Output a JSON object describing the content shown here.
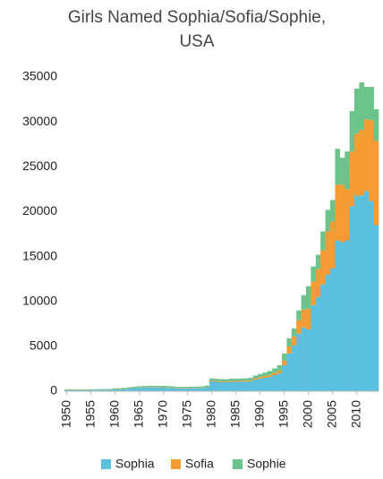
{
  "chart_data": {
    "type": "bar",
    "stacked": true,
    "title": "Girls Named Sophia/Sofia/Sophie, USA",
    "x": [
      1950,
      1951,
      1952,
      1953,
      1954,
      1955,
      1956,
      1957,
      1958,
      1959,
      1960,
      1961,
      1962,
      1963,
      1964,
      1965,
      1966,
      1967,
      1968,
      1969,
      1970,
      1971,
      1972,
      1973,
      1974,
      1975,
      1976,
      1977,
      1978,
      1979,
      1980,
      1981,
      1982,
      1983,
      1984,
      1985,
      1986,
      1987,
      1988,
      1989,
      1990,
      1991,
      1992,
      1993,
      1994,
      1995,
      1996,
      1997,
      1998,
      1999,
      2000,
      2001,
      2002,
      2003,
      2004,
      2005,
      2006,
      2007,
      2008,
      2009,
      2010,
      2011,
      2012,
      2013,
      2014
    ],
    "xlim": [
      1949.5,
      2014.5
    ],
    "xticks": [
      1950,
      1955,
      1960,
      1965,
      1970,
      1975,
      1980,
      1985,
      1990,
      1995,
      2000,
      2005,
      2010
    ],
    "ylim": [
      0,
      35000
    ],
    "yticks": [
      0,
      5000,
      10000,
      15000,
      20000,
      25000,
      30000,
      35000
    ],
    "grid": false,
    "legend": "bottom",
    "series": [
      {
        "name": "Sophia",
        "color": "#5bbfde",
        "values": [
          130,
          130,
          120,
          120,
          130,
          130,
          140,
          150,
          160,
          170,
          200,
          220,
          250,
          300,
          350,
          380,
          400,
          420,
          430,
          420,
          400,
          380,
          350,
          330,
          320,
          330,
          340,
          350,
          380,
          450,
          1100,
          1050,
          1000,
          1000,
          1050,
          1050,
          1050,
          1050,
          1100,
          1300,
          1400,
          1500,
          1600,
          1800,
          2000,
          2900,
          4200,
          5100,
          6400,
          7100,
          6900,
          9600,
          10500,
          11900,
          13000,
          13700,
          16800,
          16600,
          16800,
          20600,
          21800,
          21800,
          22300,
          21200,
          18500
        ]
      },
      {
        "name": "Sofia",
        "color": "#f79b34",
        "values": [
          20,
          20,
          20,
          20,
          20,
          20,
          20,
          20,
          20,
          20,
          30,
          30,
          30,
          30,
          30,
          30,
          30,
          30,
          30,
          30,
          40,
          40,
          40,
          40,
          40,
          40,
          40,
          40,
          40,
          40,
          80,
          80,
          90,
          90,
          100,
          100,
          110,
          120,
          130,
          150,
          170,
          190,
          210,
          250,
          300,
          500,
          800,
          1000,
          1500,
          2000,
          2300,
          2600,
          3100,
          3800,
          4800,
          5200,
          6200,
          6400,
          5700,
          6100,
          6900,
          7300,
          8000,
          9000,
          9400
        ]
      },
      {
        "name": "Sophie",
        "color": "#6cc48c",
        "values": [
          70,
          70,
          70,
          70,
          70,
          70,
          70,
          70,
          70,
          70,
          100,
          100,
          110,
          120,
          130,
          140,
          150,
          150,
          150,
          150,
          150,
          150,
          140,
          130,
          130,
          130,
          130,
          130,
          130,
          140,
          250,
          250,
          250,
          250,
          250,
          250,
          260,
          270,
          280,
          300,
          350,
          400,
          450,
          500,
          600,
          800,
          900,
          900,
          1100,
          1600,
          2500,
          1700,
          1600,
          2100,
          2400,
          2400,
          4000,
          3000,
          4200,
          4500,
          5000,
          5300,
          3600,
          3700,
          3500
        ]
      }
    ]
  }
}
